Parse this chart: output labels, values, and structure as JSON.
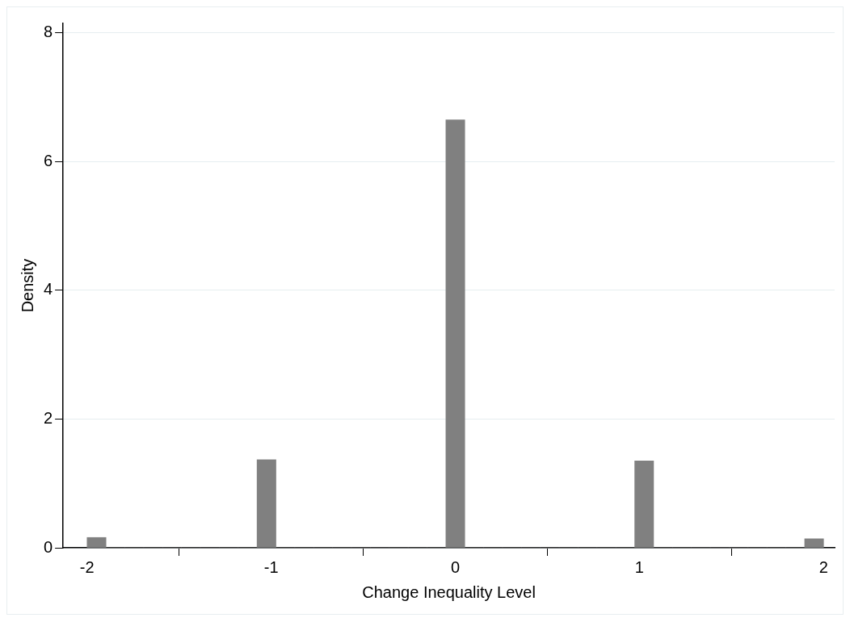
{
  "chart_data": {
    "type": "histogram",
    "xlabel": "Change Inequality Level",
    "ylabel": "Density",
    "bins": [
      -2,
      -1.897,
      -1.795,
      -1.692,
      -1.59,
      -1.487,
      -1.385,
      -1.282,
      -1.179,
      -1.077,
      -0.974,
      -0.872,
      -0.769,
      -0.667,
      -0.564,
      -0.462,
      -0.359,
      -0.256,
      -0.154,
      -0.051,
      0.051,
      0.154,
      0.256,
      0.359,
      0.462,
      0.564,
      0.667,
      0.769,
      0.872,
      0.974,
      1.077,
      1.179,
      1.282,
      1.385,
      1.487,
      1.59,
      1.692,
      1.795,
      1.897,
      2
    ],
    "values": [
      0.16,
      0,
      0,
      0,
      0,
      0,
      0,
      0,
      0,
      1.37,
      0,
      0,
      0,
      0,
      0,
      0,
      0,
      0,
      0,
      6.65,
      0,
      0,
      0,
      0,
      0,
      0,
      0,
      0,
      0,
      1.35,
      0,
      0,
      0,
      0,
      0,
      0,
      0,
      0,
      0.14
    ],
    "color": "#808080",
    "xlim": [
      -2.13,
      2.06
    ],
    "xticks": [
      -2,
      -1,
      0,
      1,
      2
    ],
    "ylim": [
      0,
      8.15
    ],
    "yticks": [
      0,
      2,
      4,
      6,
      8
    ],
    "grid": "y",
    "legend": false
  }
}
